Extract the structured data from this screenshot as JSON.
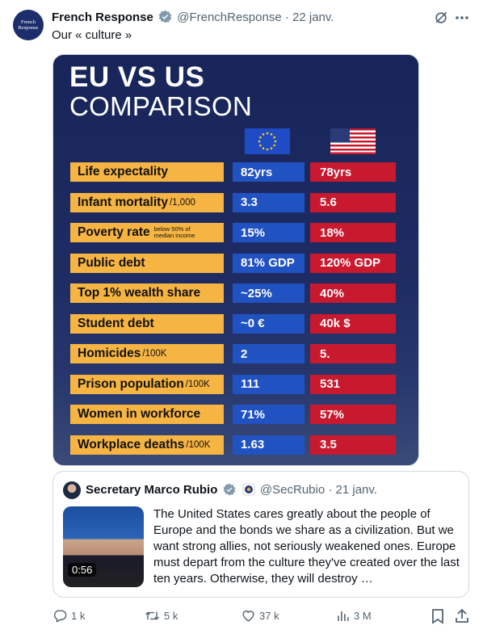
{
  "tweet": {
    "avatar_label": "French Response",
    "name": "French Response",
    "handle": "@FrenchResponse",
    "date": "22 janv.",
    "text": "Our « culture »"
  },
  "image": {
    "title": "EU VS US",
    "subtitle": "COMPARISON",
    "rows": [
      {
        "label": "Life expectality",
        "eu": "82yrs",
        "us": "78yrs"
      },
      {
        "label": "Infant mortality",
        "unit": "/1,000",
        "eu": "3.3",
        "us": "5.6"
      },
      {
        "label": "Poverty rate",
        "note": [
          "below 50% of",
          "median income"
        ],
        "eu": "15%",
        "us": "18%"
      },
      {
        "label": "Public debt",
        "eu": "81% GDP",
        "us": "120% GDP"
      },
      {
        "label": "Top 1% wealth share",
        "eu": "~25%",
        "us": "40%"
      },
      {
        "label": "Student debt",
        "eu": "~0 €",
        "us": "40k $"
      },
      {
        "label": "Homicides",
        "unit": "/100K",
        "eu": "2",
        "us": "5."
      },
      {
        "label": "Prison population",
        "unit": "/100K",
        "eu": "111",
        "us": "531"
      },
      {
        "label": "Women in workforce",
        "eu": "71%",
        "us": "57%"
      },
      {
        "label": "Workplace deaths",
        "unit": "/100K",
        "eu": "1.63",
        "us": "3.5"
      }
    ]
  },
  "quote": {
    "name": "Secretary Marco Rubio",
    "handle": "@SecRubio",
    "date": "21 janv.",
    "video_duration": "0:56",
    "text": "The United States cares greatly about the people of Europe and the bonds we share as a civilization. But we want strong allies, not seriously weakened ones. Europe must depart from the culture they've created over the last ten years. Otherwise, they will destroy …"
  },
  "actions": {
    "replies": "1 k",
    "reposts": "5 k",
    "likes": "37 k",
    "views": "3 M"
  }
}
